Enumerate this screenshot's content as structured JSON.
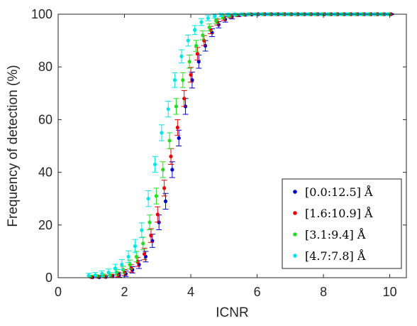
{
  "chart_data": {
    "type": "scatter",
    "title": "",
    "xlabel": "ICNR",
    "ylabel": "Frequency of detection (%)",
    "xlim": [
      0,
      10.5
    ],
    "ylim": [
      0,
      100
    ],
    "xticks": [
      "0",
      "2",
      "4",
      "6",
      "8",
      "10"
    ],
    "yticks": [
      "0",
      "20",
      "40",
      "60",
      "80",
      "100"
    ],
    "grid": false,
    "legend_position": "bottom-right",
    "error_bars": true,
    "x": [
      1.0,
      1.2,
      1.4,
      1.6,
      1.8,
      2.0,
      2.2,
      2.4,
      2.6,
      2.8,
      3.0,
      3.2,
      3.4,
      3.6,
      3.8,
      4.0,
      4.2,
      4.4,
      4.6,
      4.8,
      5.0,
      5.2,
      5.4,
      5.6,
      5.8,
      6.0,
      6.2,
      6.4,
      6.6,
      6.8,
      7.0,
      7.2,
      7.4,
      7.6,
      7.8,
      8.0,
      8.2,
      8.4,
      8.6,
      8.8,
      9.0,
      9.2,
      9.4,
      9.6,
      9.8,
      10.0
    ],
    "series": [
      {
        "name": "[0.0:12.5] Å",
        "color": "#0000cc",
        "values": [
          0.2,
          0.2,
          0.3,
          0.5,
          1,
          1.5,
          3,
          5,
          8,
          14,
          21,
          29,
          41,
          53,
          65,
          75,
          82,
          88,
          93,
          96,
          98,
          99,
          99.6,
          99.8,
          99.9,
          100,
          100,
          100,
          100,
          100,
          100,
          100,
          100,
          100,
          100,
          100,
          100,
          100,
          100,
          100,
          100,
          100,
          100,
          100,
          100,
          100
        ],
        "errors": [
          0.5,
          0.5,
          0.5,
          0.6,
          0.8,
          1,
          1.2,
          1.5,
          2,
          2.5,
          2.8,
          3,
          3,
          3,
          3,
          3,
          2.5,
          2,
          1.5,
          1.2,
          1,
          0.8,
          0.5,
          0.4,
          0.3,
          0.2,
          0.2,
          0.2,
          0.2,
          0.2,
          0.2,
          0.2,
          0.2,
          0.2,
          0.2,
          0.2,
          0.2,
          0.2,
          0.2,
          0.2,
          0.2,
          0.2,
          0.2,
          0.2,
          0.2,
          0.2
        ]
      },
      {
        "name": "[1.6:10.9] Å",
        "color": "#e60000",
        "values": [
          0.2,
          0.3,
          0.4,
          0.6,
          1.2,
          2,
          3.5,
          6,
          9,
          16,
          24,
          34,
          46,
          57,
          68,
          77,
          85,
          90,
          94,
          97,
          98.5,
          99.3,
          99.7,
          99.9,
          100,
          100,
          100,
          100,
          100,
          100,
          100,
          100,
          100,
          100,
          100,
          100,
          100,
          100,
          100,
          100,
          100,
          100,
          100,
          100,
          100,
          100
        ],
        "errors": [
          0.5,
          0.5,
          0.6,
          0.7,
          0.9,
          1.1,
          1.4,
          1.7,
          2.2,
          2.6,
          2.9,
          3,
          3,
          3,
          3,
          2.8,
          2.4,
          1.9,
          1.4,
          1.1,
          0.9,
          0.7,
          0.5,
          0.3,
          0.2,
          0.2,
          0.2,
          0.2,
          0.2,
          0.2,
          0.2,
          0.2,
          0.2,
          0.2,
          0.2,
          0.2,
          0.2,
          0.2,
          0.2,
          0.2,
          0.2,
          0.2,
          0.2,
          0.2,
          0.2,
          0.2
        ]
      },
      {
        "name": "[3.1:9.4] Å",
        "color": "#22dd22",
        "values": [
          0.4,
          0.5,
          0.7,
          1,
          2,
          3,
          5,
          8,
          13,
          21,
          31,
          41,
          52,
          65,
          75,
          82,
          88,
          92,
          95,
          97.5,
          99,
          99.5,
          99.8,
          99.9,
          100,
          100,
          100,
          100,
          100,
          100,
          100,
          100,
          100,
          100,
          100,
          100,
          100,
          100,
          100,
          100,
          100,
          100,
          100,
          100,
          100,
          100
        ],
        "errors": [
          0.6,
          0.6,
          0.7,
          0.9,
          1.1,
          1.3,
          1.7,
          2,
          2.4,
          2.8,
          3,
          3,
          3,
          3,
          2.8,
          2.5,
          2.1,
          1.7,
          1.3,
          1,
          0.8,
          0.6,
          0.4,
          0.3,
          0.2,
          0.2,
          0.2,
          0.2,
          0.2,
          0.2,
          0.2,
          0.2,
          0.2,
          0.2,
          0.2,
          0.2,
          0.2,
          0.2,
          0.2,
          0.2,
          0.2,
          0.2,
          0.2,
          0.2,
          0.2,
          0.2
        ]
      },
      {
        "name": "[4.7:7.8] Å",
        "color": "#00e5e5",
        "values": [
          0.8,
          1,
          1.5,
          2,
          3.5,
          5,
          8,
          12,
          18,
          30,
          43,
          55,
          64,
          75,
          84,
          90,
          94,
          97,
          98.5,
          99.3,
          99.7,
          99.9,
          100,
          100,
          100,
          100,
          100,
          100,
          100,
          100,
          100,
          100,
          100,
          100,
          100,
          100,
          100,
          100,
          100,
          100,
          100,
          100,
          100,
          100,
          100,
          100
        ],
        "errors": [
          0.9,
          1,
          1.1,
          1.3,
          1.6,
          1.9,
          2.2,
          2.5,
          2.8,
          3,
          3,
          3,
          3,
          2.8,
          2.5,
          2.1,
          1.7,
          1.3,
          1,
          0.8,
          0.6,
          0.4,
          0.3,
          0.2,
          0.2,
          0.2,
          0.2,
          0.2,
          0.2,
          0.2,
          0.2,
          0.2,
          0.2,
          0.2,
          0.2,
          0.2,
          0.2,
          0.2,
          0.2,
          0.2,
          0.2,
          0.2,
          0.2,
          0.2,
          0.2,
          0.2
        ]
      }
    ]
  }
}
